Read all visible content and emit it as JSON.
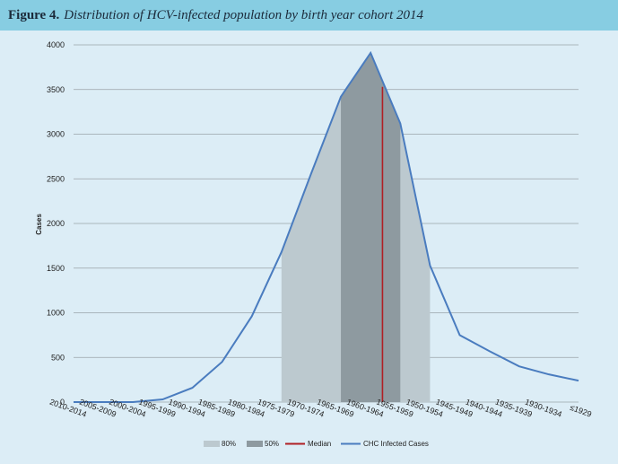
{
  "figure": {
    "label": "Figure 4.",
    "title": "Distribution of HCV-infected population by birth year cohort 2014"
  },
  "colors": {
    "header_bg": "#87cde2",
    "background": "#dcedf6",
    "band_80": "#bcc9cf",
    "band_50": "#8e9aa0",
    "median": "#b01f24",
    "line": "#4a7cbf"
  },
  "chart_data": {
    "type": "line",
    "title": "Distribution of HCV-infected population by birth year cohort 2014",
    "xlabel": "",
    "ylabel": "Cases",
    "ylim": [
      0,
      4000
    ],
    "y_ticks": [
      0,
      500,
      1000,
      1500,
      2000,
      2500,
      3000,
      3500,
      4000
    ],
    "grid": true,
    "legend_position": "bottom",
    "categories": [
      "2010-2014",
      "2005-2009",
      "2000-2004",
      "1995-1999",
      "1990-1994",
      "1985-1989",
      "1980-1984",
      "1975-1979",
      "1970-1974",
      "1965-1969",
      "1960-1964",
      "1955-1959",
      "1950-1954",
      "1945-1949",
      "1940-1944",
      "1935-1939",
      "1930-1934",
      "≤1929"
    ],
    "series": [
      {
        "name": "CHC Infected Cases",
        "values": [
          0,
          0,
          0,
          30,
          160,
          450,
          960,
          1680,
          2560,
          3420,
          3910,
          3120,
          1530,
          750,
          570,
          400,
          310,
          240
        ]
      }
    ],
    "band_80": {
      "name": "80%",
      "from_index": 7,
      "to_index": 12
    },
    "band_50": {
      "name": "50%",
      "from_index": 9,
      "to_index": 11
    },
    "median": {
      "name": "Median",
      "position_index": 10.4,
      "value": 3530
    },
    "legend": [
      "80%",
      "50%",
      "Median",
      "CHC Infected Cases"
    ]
  }
}
